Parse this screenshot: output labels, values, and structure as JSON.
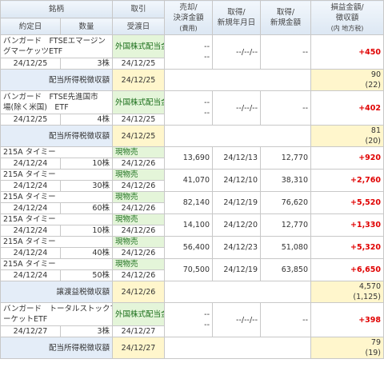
{
  "header": {
    "name": "銘柄",
    "trade_date": "約定日",
    "quantity": "数量",
    "trade": "取引",
    "settle_date": "受渡日",
    "sell_amount": [
      "売却/",
      "決済金額",
      "(費用)"
    ],
    "acq_date": [
      "取得/",
      "新規年月日"
    ],
    "acq_amount": [
      "取得/",
      "新規金額"
    ],
    "profit": [
      "損益金額/",
      "徴収額",
      "(内 地方税)"
    ]
  },
  "rows": [
    {
      "kind": "trade",
      "name": [
        "バンガード　FTSEエマージン",
        "グマーケッツETF"
      ],
      "trade_date": "24/12/25",
      "quantity": "3株",
      "trade": "外国株式配当金",
      "settle_date": "24/12/25",
      "sell_amount": [
        "--",
        "--"
      ],
      "acq_date": "--/--/--",
      "acq_amount": "--",
      "profit": "+450"
    },
    {
      "kind": "tax",
      "label": "配当所得税徴収額",
      "settle_date": "24/12/25",
      "amount": "90",
      "local_tax": "(22)"
    },
    {
      "kind": "trade",
      "name": [
        "バンガード　FTSE先進国市",
        "場(除く米国)　ETF"
      ],
      "trade_date": "24/12/25",
      "quantity": "4株",
      "trade": "外国株式配当金",
      "settle_date": "24/12/25",
      "sell_amount": [
        "--",
        "--"
      ],
      "acq_date": "--/--/--",
      "acq_amount": "--",
      "profit": "+402"
    },
    {
      "kind": "tax",
      "label": "配当所得税徴収額",
      "settle_date": "24/12/25",
      "amount": "81",
      "local_tax": "(20)"
    },
    {
      "kind": "trade",
      "name": [
        "215A タイミー"
      ],
      "trade_date": "24/12/24",
      "quantity": "10株",
      "trade": "現物売",
      "settle_date": "24/12/26",
      "sell_amount": [
        "13,690"
      ],
      "acq_date": "24/12/13",
      "acq_amount": "12,770",
      "profit": "+920"
    },
    {
      "kind": "trade",
      "name": [
        "215A タイミー"
      ],
      "trade_date": "24/12/24",
      "quantity": "30株",
      "trade": "現物売",
      "settle_date": "24/12/26",
      "sell_amount": [
        "41,070"
      ],
      "acq_date": "24/12/10",
      "acq_amount": "38,310",
      "profit": "+2,760"
    },
    {
      "kind": "trade",
      "name": [
        "215A タイミー"
      ],
      "trade_date": "24/12/24",
      "quantity": "60株",
      "trade": "現物売",
      "settle_date": "24/12/26",
      "sell_amount": [
        "82,140"
      ],
      "acq_date": "24/12/19",
      "acq_amount": "76,620",
      "profit": "+5,520"
    },
    {
      "kind": "trade",
      "name": [
        "215A タイミー"
      ],
      "trade_date": "24/12/24",
      "quantity": "10株",
      "trade": "現物売",
      "settle_date": "24/12/26",
      "sell_amount": [
        "14,100"
      ],
      "acq_date": "24/12/20",
      "acq_amount": "12,770",
      "profit": "+1,330"
    },
    {
      "kind": "trade",
      "name": [
        "215A タイミー"
      ],
      "trade_date": "24/12/24",
      "quantity": "40株",
      "trade": "現物売",
      "settle_date": "24/12/26",
      "sell_amount": [
        "56,400"
      ],
      "acq_date": "24/12/23",
      "acq_amount": "51,080",
      "profit": "+5,320"
    },
    {
      "kind": "trade",
      "name": [
        "215A タイミー"
      ],
      "trade_date": "24/12/24",
      "quantity": "50株",
      "trade": "現物売",
      "settle_date": "24/12/26",
      "sell_amount": [
        "70,500"
      ],
      "acq_date": "24/12/19",
      "acq_amount": "63,850",
      "profit": "+6,650"
    },
    {
      "kind": "tax",
      "label": "譲渡益税徴収額",
      "settle_date": "24/12/26",
      "amount": "4,570",
      "local_tax": "(1,125)"
    },
    {
      "kind": "trade",
      "name": [
        "バンガード　トータルストックマ",
        "ーケットETF"
      ],
      "trade_date": "24/12/27",
      "quantity": "3株",
      "trade": "外国株式配当金",
      "settle_date": "24/12/27",
      "sell_amount": [
        "--",
        "--"
      ],
      "acq_date": "--/--/--",
      "acq_amount": "--",
      "profit": "+398"
    },
    {
      "kind": "tax",
      "label": "配当所得税徴収額",
      "settle_date": "24/12/27",
      "amount": "79",
      "local_tax": "(19)"
    }
  ]
}
